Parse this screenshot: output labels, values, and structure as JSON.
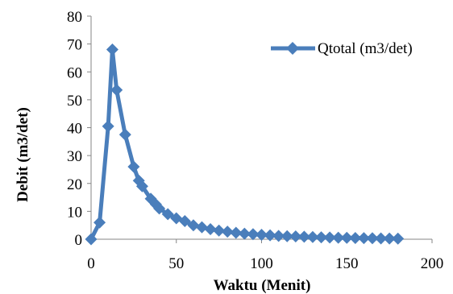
{
  "chart_data": {
    "type": "line",
    "xlabel": "Waktu (Menit)",
    "ylabel": "Debit (m3/det)",
    "xlim": [
      0,
      200
    ],
    "ylim": [
      0,
      80
    ],
    "xticks": [
      0,
      50,
      100,
      150,
      200
    ],
    "yticks": [
      0,
      10,
      20,
      30,
      40,
      50,
      60,
      70,
      80
    ],
    "grid": false,
    "legend_position": "top-right",
    "series": [
      {
        "name": "Qtotal (m3/det)",
        "color": "#4a7ebb",
        "marker": "diamond",
        "x": [
          0,
          5,
          10,
          12.5,
          15,
          20,
          25,
          28,
          30,
          35,
          38,
          40,
          45,
          50,
          55,
          60,
          65,
          70,
          75,
          80,
          85,
          90,
          95,
          100,
          105,
          110,
          115,
          120,
          125,
          130,
          135,
          140,
          145,
          150,
          155,
          160,
          165,
          170,
          175,
          180
        ],
        "y": [
          0,
          6,
          40.5,
          68,
          53.5,
          37.5,
          26,
          21,
          19,
          14.5,
          12.5,
          11,
          9,
          7.5,
          6.5,
          5,
          4.3,
          3.6,
          3.1,
          2.7,
          2.3,
          2,
          1.8,
          1.6,
          1.4,
          1.2,
          1.1,
          1,
          0.9,
          0.8,
          0.7,
          0.6,
          0.55,
          0.5,
          0.45,
          0.4,
          0.35,
          0.3,
          0.25,
          0.2
        ]
      }
    ]
  }
}
